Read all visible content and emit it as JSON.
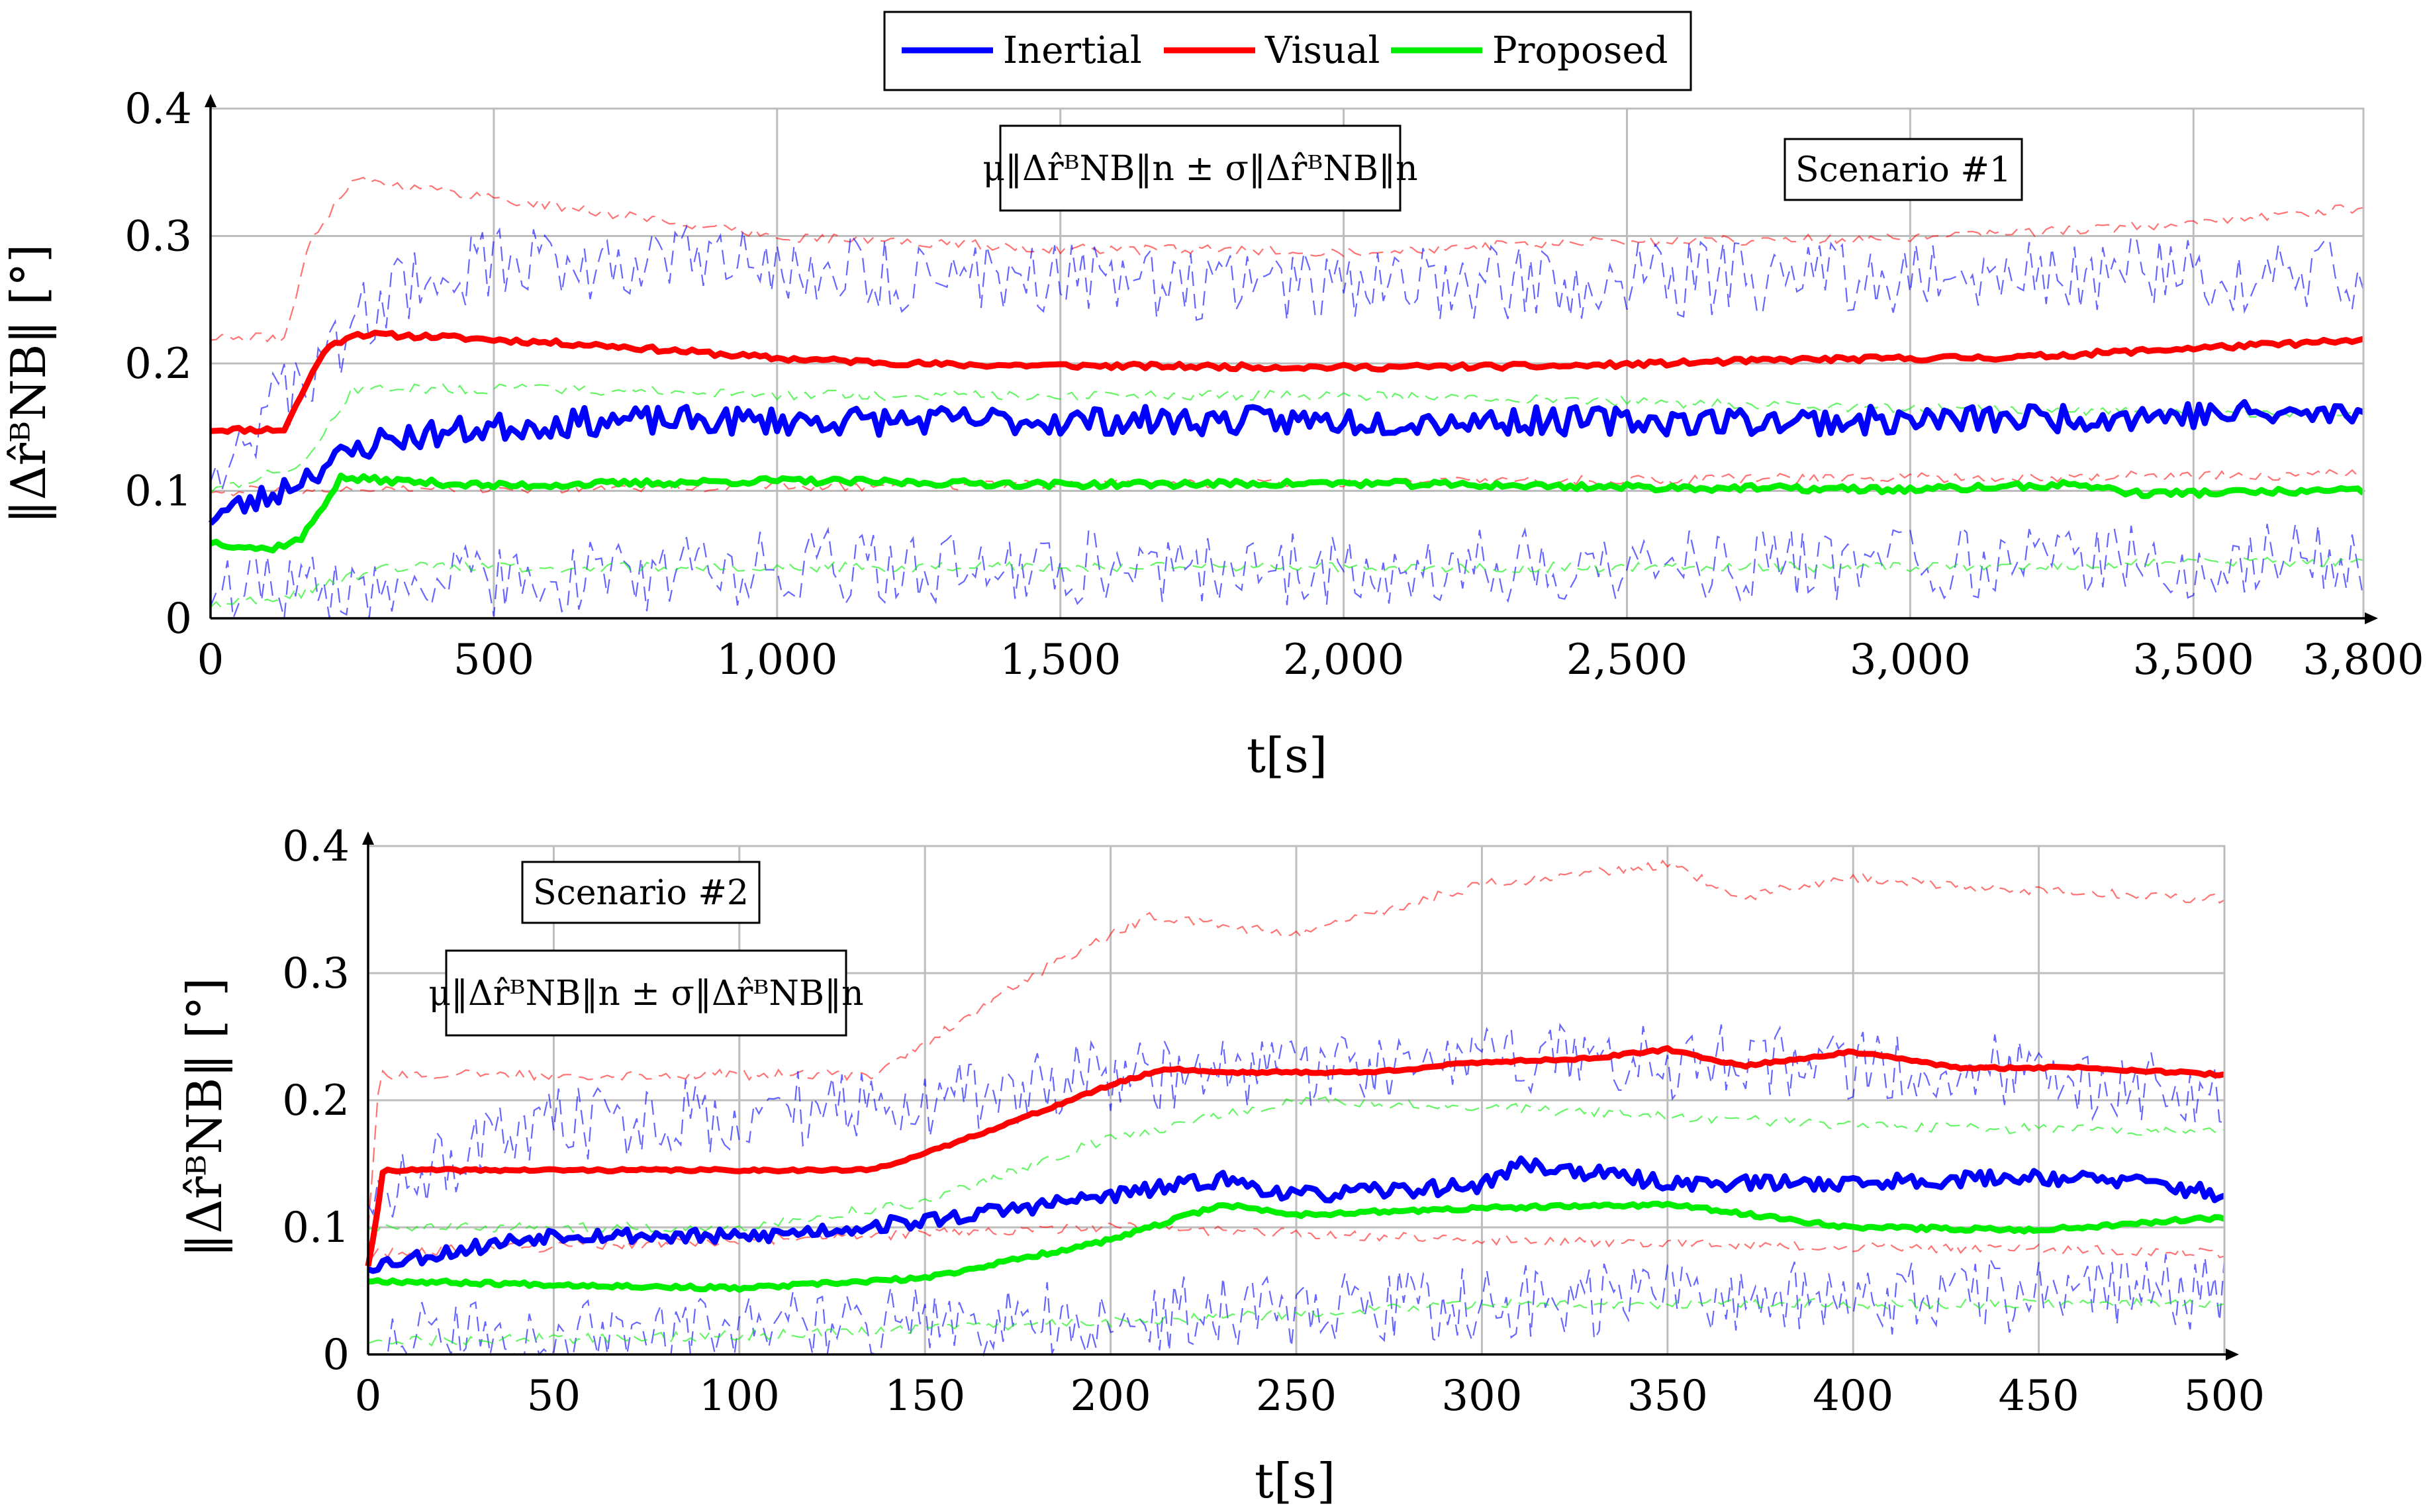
{
  "legend": {
    "items": [
      {
        "label": "Inertial",
        "color": "#0000ff"
      },
      {
        "label": "Visual",
        "color": "#ff0000"
      },
      {
        "label": "Proposed",
        "color": "#00ee00"
      }
    ]
  },
  "chart_data": [
    {
      "type": "line",
      "scenario_label": "Scenario #1",
      "annotation": "μ‖Δr̂ᴮNB‖n ± σ‖Δr̂ᴮNB‖n",
      "xlabel": "t[s]",
      "ylabel": "‖Δr̂ᴮNB‖ [°]",
      "xlim": [
        0,
        3800
      ],
      "ylim": [
        0,
        0.4
      ],
      "grid": true,
      "xticks": [
        0,
        500,
        1000,
        1500,
        2000,
        2500,
        3000,
        3500,
        3800
      ],
      "xtick_labels": [
        "0",
        "500",
        "1,000",
        "1,500",
        "2,000",
        "2,500",
        "3,000",
        "3,500",
        "3,800"
      ],
      "yticks": [
        0,
        0.1,
        0.2,
        0.3,
        0.4
      ],
      "ytick_labels": [
        "0",
        "0.1",
        "0.2",
        "0.3",
        "0.4"
      ],
      "series": [
        {
          "name": "Visual",
          "color": "#ff0000",
          "noise": 0.002,
          "seed": 11,
          "mean": {
            "x": [
              0,
              130,
              160,
              200,
              250,
              400,
              700,
              1000,
              1300,
              1600,
              2000,
              2400,
              2800,
              3200,
              3500,
              3800
            ],
            "y": [
              0.148,
              0.148,
              0.175,
              0.21,
              0.223,
              0.221,
              0.214,
              0.204,
              0.199,
              0.198,
              0.197,
              0.198,
              0.203,
              0.205,
              0.212,
              0.218
            ]
          },
          "upper": {
            "x": [
              0,
              130,
              180,
              250,
              500,
              1000,
              1500,
              2000,
              2500,
              3000,
              3500,
              3800
            ],
            "y": [
              0.22,
              0.22,
              0.3,
              0.345,
              0.33,
              0.3,
              0.29,
              0.288,
              0.296,
              0.298,
              0.31,
              0.322
            ]
          },
          "lower": {
            "x": [
              0,
              3800
            ],
            "y": [
              0.1,
              0.113
            ]
          }
        },
        {
          "name": "Inertial",
          "color": "#0000ff",
          "noise": 0.011,
          "seed": 23,
          "mean": {
            "x": [
              0,
              100,
              200,
              300,
              500,
              700,
              1000,
              1500,
              2000,
              2500,
              3000,
              3500,
              3800
            ],
            "y": [
              0.08,
              0.095,
              0.12,
              0.14,
              0.15,
              0.155,
              0.155,
              0.155,
              0.155,
              0.155,
              0.155,
              0.16,
              0.16
            ]
          },
          "upper": {
            "x": [
              0,
              150,
              300,
              500,
              800,
              1200,
              2000,
              3000,
              3800
            ],
            "y": [
              0.12,
              0.18,
              0.25,
              0.28,
              0.28,
              0.27,
              0.26,
              0.27,
              0.27
            ]
          },
          "lower": {
            "x": [
              0,
              200,
              500,
              1000,
              2000,
              3000,
              3800
            ],
            "y": [
              0.02,
              0.02,
              0.03,
              0.04,
              0.04,
              0.045,
              0.045
            ]
          }
        },
        {
          "name": "Proposed",
          "color": "#00ee00",
          "noise": 0.0025,
          "seed": 37,
          "mean": {
            "x": [
              0,
              100,
              160,
              230,
              500,
              1000,
              1500,
              2000,
              2500,
              3000,
              3300,
              3400,
              3800
            ],
            "y": [
              0.06,
              0.054,
              0.062,
              0.11,
              0.104,
              0.108,
              0.105,
              0.106,
              0.103,
              0.101,
              0.105,
              0.098,
              0.1
            ]
          },
          "upper": {
            "x": [
              0,
              160,
              250,
              600,
              1000,
              2000,
              3000,
              3800
            ],
            "y": [
              0.1,
              0.12,
              0.18,
              0.18,
              0.175,
              0.175,
              0.165,
              0.16
            ]
          },
          "lower": {
            "x": [
              0,
              160,
              300,
              1000,
              2000,
              3000,
              3800
            ],
            "y": [
              0.01,
              0.02,
              0.04,
              0.04,
              0.04,
              0.04,
              0.045
            ]
          }
        }
      ]
    },
    {
      "type": "line",
      "scenario_label": "Scenario #2",
      "annotation": "μ‖Δr̂ᴮNB‖n ± σ‖Δr̂ᴮNB‖n",
      "xlabel": "t[s]",
      "ylabel": "‖Δr̂ᴮNB‖ [°]",
      "xlim": [
        0,
        500
      ],
      "ylim": [
        0,
        0.4
      ],
      "grid": true,
      "xticks": [
        0,
        50,
        100,
        150,
        200,
        250,
        300,
        350,
        400,
        450,
        500
      ],
      "xtick_labels": [
        "0",
        "50",
        "100",
        "150",
        "200",
        "250",
        "300",
        "350",
        "400",
        "450",
        "500"
      ],
      "yticks": [
        0,
        0.1,
        0.2,
        0.3,
        0.4
      ],
      "ytick_labels": [
        "0",
        "0.1",
        "0.2",
        "0.3",
        "0.4"
      ],
      "series": [
        {
          "name": "Visual",
          "color": "#ff0000",
          "noise": 0.001,
          "seed": 41,
          "mean": {
            "x": [
              0,
              2,
              4,
              135,
              150,
              180,
              200,
              215,
              230,
              250,
              270,
              300,
              330,
              350,
              370,
              400,
              430,
              460,
              500
            ],
            "y": [
              0.07,
              0.1,
              0.145,
              0.145,
              0.158,
              0.19,
              0.212,
              0.225,
              0.222,
              0.222,
              0.222,
              0.23,
              0.233,
              0.24,
              0.227,
              0.238,
              0.225,
              0.226,
              0.22
            ]
          },
          "upper": {
            "x": [
              0,
              3,
              135,
              150,
              180,
              210,
              250,
              300,
              350,
              370,
              400,
              450,
              500
            ],
            "y": [
              0.1,
              0.22,
              0.22,
              0.245,
              0.3,
              0.345,
              0.33,
              0.37,
              0.385,
              0.36,
              0.375,
              0.365,
              0.358
            ]
          },
          "lower": {
            "x": [
              0,
              200,
              300,
              400,
              500
            ],
            "y": [
              0.08,
              0.1,
              0.09,
              0.085,
              0.08
            ]
          }
        },
        {
          "name": "Inertial",
          "color": "#0000ff",
          "noise": 0.006,
          "seed": 53,
          "mean": {
            "x": [
              0,
              50,
              100,
              150,
              200,
              230,
              250,
              300,
              310,
              350,
              400,
              450,
              480,
              500
            ],
            "y": [
              0.07,
              0.095,
              0.092,
              0.105,
              0.125,
              0.138,
              0.125,
              0.133,
              0.15,
              0.135,
              0.135,
              0.14,
              0.135,
              0.125
            ]
          },
          "upper": {
            "x": [
              0,
              50,
              100,
              150,
              200,
              250,
              300,
              350,
              400,
              450,
              500
            ],
            "y": [
              0.13,
              0.18,
              0.19,
              0.2,
              0.22,
              0.22,
              0.23,
              0.23,
              0.23,
              0.22,
              0.2
            ]
          },
          "lower": {
            "x": [
              0,
              100,
              200,
              300,
              400,
              500
            ],
            "y": [
              0.01,
              0.02,
              0.03,
              0.04,
              0.045,
              0.05
            ]
          }
        },
        {
          "name": "Proposed",
          "color": "#00ee00",
          "noise": 0.0015,
          "seed": 67,
          "mean": {
            "x": [
              0,
              50,
              100,
              150,
              200,
              230,
              250,
              300,
              350,
              400,
              450,
              500
            ],
            "y": [
              0.058,
              0.055,
              0.052,
              0.06,
              0.09,
              0.118,
              0.11,
              0.115,
              0.118,
              0.1,
              0.098,
              0.108
            ]
          },
          "upper": {
            "x": [
              0,
              100,
              150,
              200,
              250,
              300,
              400,
              500
            ],
            "y": [
              0.1,
              0.1,
              0.12,
              0.17,
              0.2,
              0.195,
              0.18,
              0.175
            ]
          },
          "lower": {
            "x": [
              0,
              100,
              200,
              300,
              400,
              500
            ],
            "y": [
              0.01,
              0.015,
              0.025,
              0.04,
              0.04,
              0.04
            ]
          }
        }
      ]
    }
  ]
}
